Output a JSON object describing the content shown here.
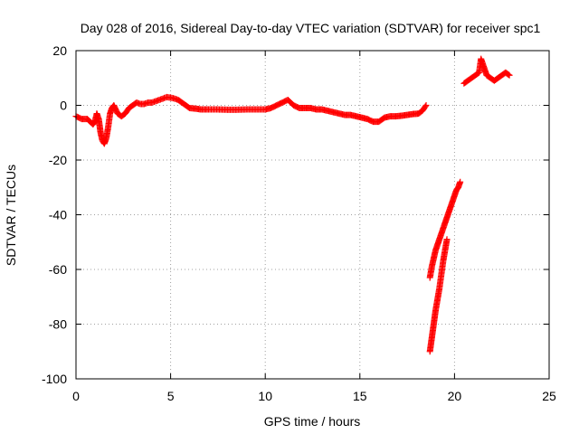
{
  "chart_data": {
    "type": "scatter",
    "title": "Day 028 of 2016, Sidereal Day-to-day VTEC variation (SDTVAR) for receiver spc1",
    "xlabel": "GPS time / hours",
    "ylabel": "SDTVAR / TECUs",
    "xlim": [
      0,
      25
    ],
    "ylim": [
      -100,
      20
    ],
    "xticks": [
      "0",
      "5",
      "10",
      "15",
      "20",
      "25"
    ],
    "yticks": [
      "20",
      "0",
      "-20",
      "-40",
      "-60",
      "-80",
      "-100"
    ],
    "grid": true,
    "marker": "+",
    "color": "#ff0000",
    "series": [
      {
        "x": [
          0.0,
          0.3,
          0.6,
          0.9,
          1.0,
          1.1,
          1.2,
          1.3,
          1.4,
          1.5,
          1.6,
          1.7,
          1.8,
          1.9,
          2.0,
          2.2,
          2.4,
          2.6,
          2.8,
          3.0,
          3.2,
          3.4,
          3.6,
          3.8,
          4.0,
          4.2,
          4.4,
          4.6,
          4.8,
          5.0,
          5.2,
          5.4,
          5.6,
          5.8,
          6.0,
          6.3,
          6.6,
          7.0,
          7.5,
          8.0,
          8.5,
          9.0,
          9.5,
          10.0,
          10.3,
          10.6,
          10.9,
          11.2,
          11.5,
          11.8,
          12.1,
          12.4,
          12.7,
          13.0,
          13.3,
          13.6,
          13.9,
          14.2,
          14.5,
          14.8,
          15.1,
          15.4,
          15.7,
          16.0,
          16.3,
          16.6,
          16.9,
          17.2,
          17.5,
          17.8,
          18.1,
          18.3,
          18.5
        ],
        "y": [
          -4,
          -5,
          -5,
          -7,
          -6,
          -3,
          -5,
          -10,
          -13,
          -14,
          -12,
          -8,
          -3,
          -1,
          0,
          -3,
          -4,
          -3,
          -1,
          0,
          1,
          0.5,
          0.5,
          1,
          1,
          1.5,
          2,
          2.5,
          3,
          2.8,
          2.5,
          2,
          1,
          0,
          -1,
          -1.2,
          -1.5,
          -1.5,
          -1.5,
          -1.6,
          -1.6,
          -1.5,
          -1.5,
          -1.5,
          -1,
          0,
          1,
          2,
          0,
          -1,
          -1,
          -1,
          -1.5,
          -1.5,
          -2,
          -2.5,
          -3,
          -3.5,
          -3.5,
          -4,
          -4.5,
          -5,
          -6,
          -6,
          -4.5,
          -4,
          -4,
          -3.8,
          -3.5,
          -3.2,
          -3,
          -2,
          0
        ]
      },
      {
        "x": [
          18.7,
          18.8,
          18.9,
          19.0,
          19.1,
          19.2,
          19.3,
          19.4,
          19.5,
          19.6,
          19.7,
          19.8,
          19.9,
          20.0,
          20.1,
          20.2,
          20.3
        ],
        "y": [
          -63,
          -59,
          -56,
          -53,
          -51,
          -49,
          -47,
          -45,
          -43,
          -41,
          -39,
          -37,
          -35,
          -33,
          -31,
          -30,
          -28
        ]
      },
      {
        "x": [
          18.7,
          18.8,
          18.9,
          19.0,
          19.1,
          19.2,
          19.3,
          19.4,
          19.5,
          19.6
        ],
        "y": [
          -90,
          -85,
          -80,
          -75,
          -71,
          -67,
          -62,
          -57,
          -53,
          -49
        ]
      },
      {
        "x": [
          20.5,
          20.7,
          20.9,
          21.1,
          21.3,
          21.4,
          21.5,
          21.6,
          21.7,
          21.9,
          22.1,
          22.3,
          22.5,
          22.7,
          22.9
        ],
        "y": [
          8,
          9,
          10,
          11,
          12,
          17,
          15,
          13,
          11,
          10,
          9,
          10,
          11,
          12,
          11
        ]
      }
    ]
  }
}
